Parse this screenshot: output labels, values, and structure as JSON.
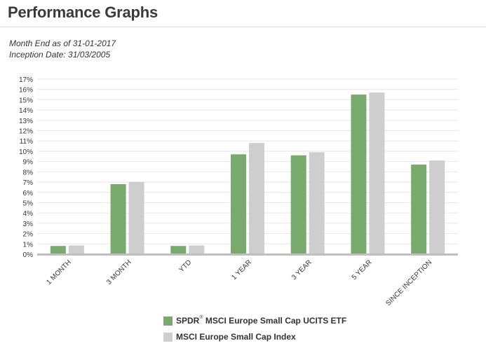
{
  "header": {
    "title": "Performance Graphs"
  },
  "meta": {
    "month_end": "Month End as of 31-01-2017",
    "inception": "Inception Date: 31/03/2005"
  },
  "colors": {
    "fund": "#78aa6e",
    "index": "#cecece",
    "grid": "#e6e6e6",
    "axis": "#bfbfbf"
  },
  "legend": {
    "fund_prefix": "SPDR",
    "fund_mark": "®",
    "fund_suffix": " MSCI Europe Small Cap UCITS ETF",
    "index_label": "MSCI Europe Small Cap Index"
  },
  "chart_data": {
    "type": "bar",
    "title": "",
    "xlabel": "",
    "ylabel": "",
    "ylim": [
      0,
      17
    ],
    "y_ticks": [
      "0%",
      "1%",
      "2%",
      "3%",
      "4%",
      "5%",
      "6%",
      "7%",
      "8%",
      "9%",
      "10%",
      "11%",
      "12%",
      "13%",
      "14%",
      "15%",
      "16%",
      "17%"
    ],
    "grid": true,
    "legend_position": "bottom",
    "categories": [
      "1 MONTH",
      "3 MONTH",
      "YTD",
      "1 YEAR",
      "3 YEAR",
      "5 YEAR",
      "SINCE INCEPTION"
    ],
    "series": [
      {
        "name": "SPDR® MSCI Europe Small Cap UCITS ETF",
        "color": "#78aa6e",
        "values": [
          0.8,
          6.8,
          0.8,
          9.7,
          9.6,
          15.5,
          8.7
        ]
      },
      {
        "name": "MSCI Europe Small Cap Index",
        "color": "#cecece",
        "values": [
          0.85,
          7.0,
          0.85,
          10.8,
          9.9,
          15.7,
          9.1
        ]
      }
    ]
  }
}
